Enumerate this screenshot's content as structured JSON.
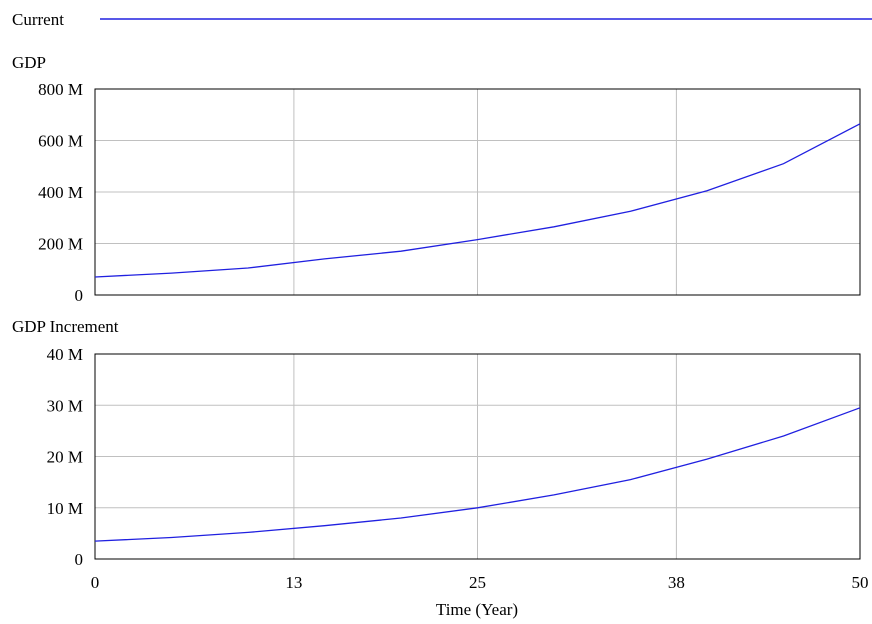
{
  "legend": {
    "label": "Current",
    "color": "#2020e0"
  },
  "x_axis": {
    "label": "Time (Year)",
    "ticks": [
      0,
      13,
      25,
      38,
      50
    ],
    "range": [
      0,
      50
    ]
  },
  "chart_data": [
    {
      "type": "line",
      "title": "GDP",
      "ylim": [
        0,
        800000000
      ],
      "yticks": [
        "0",
        "200 M",
        "400 M",
        "600 M",
        "800 M"
      ],
      "ytick_values": [
        0,
        200000000,
        400000000,
        600000000,
        800000000
      ],
      "series": [
        {
          "name": "Current",
          "color": "#2020e0",
          "x": [
            0,
            5,
            10,
            15,
            20,
            25,
            30,
            35,
            40,
            45,
            50
          ],
          "y": [
            70000000,
            85000000,
            105000000,
            140000000,
            170000000,
            215000000,
            265000000,
            325000000,
            405000000,
            510000000,
            665000000
          ]
        }
      ]
    },
    {
      "type": "line",
      "title": "GDP Increment",
      "ylim": [
        0,
        40000000
      ],
      "yticks": [
        "0",
        "10 M",
        "20 M",
        "30 M",
        "40 M"
      ],
      "ytick_values": [
        0,
        10000000,
        20000000,
        30000000,
        40000000
      ],
      "series": [
        {
          "name": "Current",
          "color": "#2020e0",
          "x": [
            0,
            5,
            10,
            15,
            20,
            25,
            30,
            35,
            40,
            45,
            50
          ],
          "y": [
            3500000,
            4200000,
            5200000,
            6500000,
            8000000,
            10000000,
            12500000,
            15500000,
            19500000,
            24000000,
            29500000
          ]
        }
      ]
    }
  ]
}
